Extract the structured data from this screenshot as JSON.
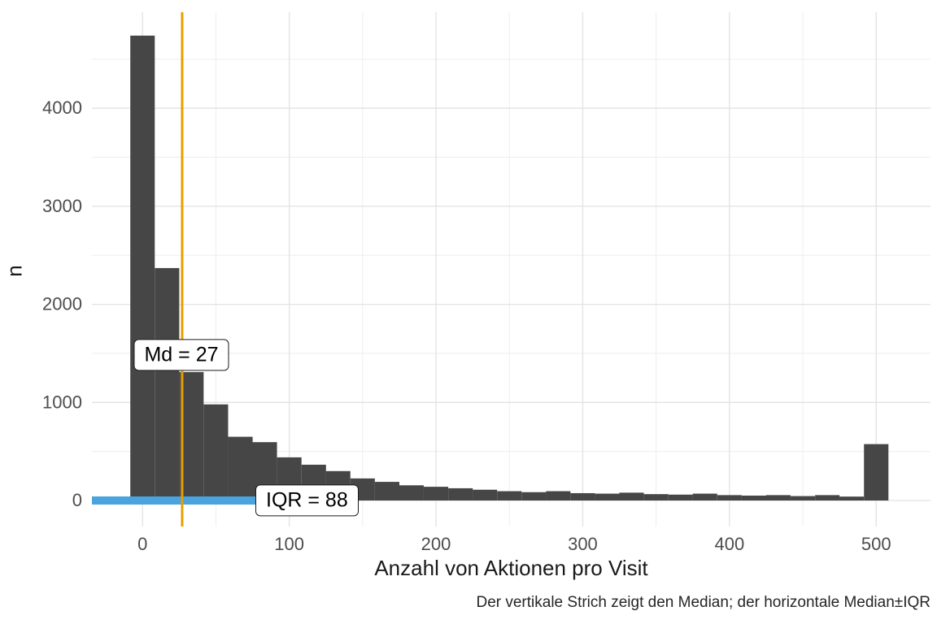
{
  "chart_data": {
    "type": "bar",
    "subtype": "histogram",
    "title": "",
    "xlabel": "Anzahl von Aktionen pro Visit",
    "ylabel": "n",
    "caption": "Der vertikale Strich zeigt den Median; der horizontale Median±IQR",
    "bin_width": 16.67,
    "bin_centers": [
      0,
      16.7,
      33.3,
      50,
      66.7,
      83.3,
      100,
      116.7,
      133.3,
      150,
      166.7,
      183.3,
      200,
      216.7,
      233.3,
      250,
      266.7,
      283.3,
      300,
      316.7,
      333.3,
      350,
      366.7,
      383.3,
      400,
      416.7,
      433.3,
      450,
      466.7,
      483.3,
      500
    ],
    "counts": [
      4740,
      2370,
      1310,
      980,
      650,
      595,
      440,
      365,
      300,
      225,
      190,
      155,
      140,
      125,
      110,
      95,
      85,
      95,
      75,
      70,
      80,
      65,
      60,
      70,
      55,
      50,
      55,
      45,
      55,
      40,
      575
    ],
    "median": 27,
    "iqr": 88,
    "iqr_band": [
      -61,
      115
    ],
    "x_ticks": [
      0,
      100,
      200,
      300,
      400,
      500
    ],
    "x_minor_ticks": [
      50,
      150,
      250,
      350,
      450
    ],
    "y_ticks": [
      0,
      1000,
      2000,
      3000,
      4000
    ],
    "y_minor_ticks": [
      500,
      1500,
      2500,
      3500,
      4500
    ],
    "xlim": [
      -34.5,
      537
    ],
    "ylim": [
      -265,
      4979
    ],
    "grid": "on",
    "legend": "none",
    "colors": {
      "bar": "#464646",
      "median_line": "#E69F00",
      "iqr_bar": "#4AA3DC",
      "grid_major": "#E2E2E2",
      "grid_minor": "#EDEDED",
      "tick_label": "#4d4d4d",
      "text": "#1a1a1a",
      "background": "#FFFFFF"
    }
  },
  "annotations": {
    "md_label": "Md = 27",
    "iqr_label": "IQR = 88"
  }
}
